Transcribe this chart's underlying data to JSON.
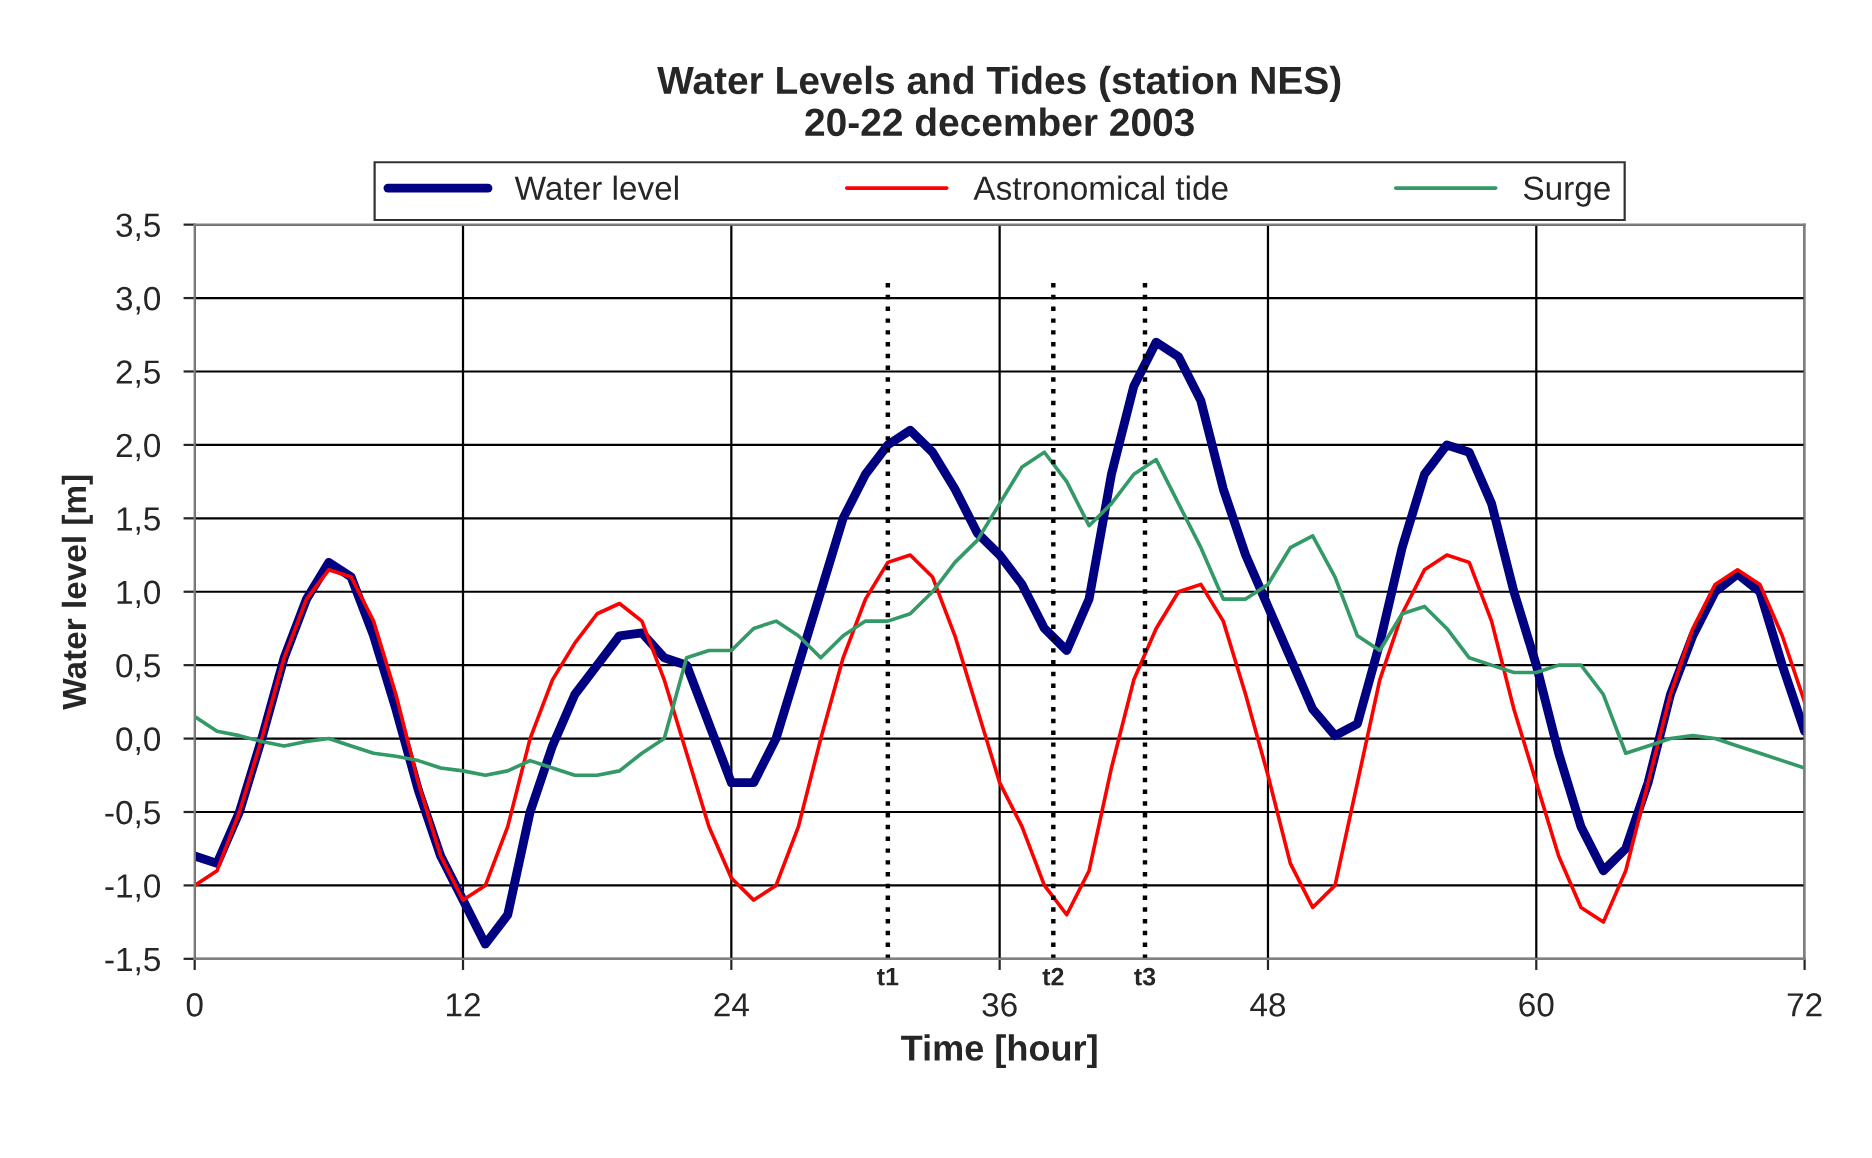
{
  "chart_data": {
    "type": "line",
    "title": "Water Levels and Tides (station NES)\n20-22 december 2003",
    "xlabel": "Time [hour]",
    "ylabel": "Water level [m]",
    "x": [
      0,
      1,
      2,
      3,
      4,
      5,
      6,
      7,
      8,
      9,
      10,
      11,
      12,
      13,
      14,
      15,
      16,
      17,
      18,
      19,
      20,
      21,
      22,
      23,
      24,
      25,
      26,
      27,
      28,
      29,
      30,
      31,
      32,
      33,
      34,
      35,
      36,
      37,
      38,
      39,
      40,
      41,
      42,
      43,
      44,
      45,
      46,
      47,
      48,
      49,
      50,
      51,
      52,
      53,
      54,
      55,
      56,
      57,
      58,
      59,
      60,
      61,
      62,
      63,
      64,
      65,
      66,
      67,
      68,
      69,
      70,
      71,
      72
    ],
    "series": [
      {
        "name": "Water level",
        "color": "#000080",
        "values": [
          -0.8,
          -0.85,
          -0.5,
          0.0,
          0.55,
          0.95,
          1.2,
          1.1,
          0.7,
          0.2,
          -0.35,
          -0.8,
          -1.1,
          -1.4,
          -1.2,
          -0.5,
          -0.05,
          0.3,
          0.5,
          0.7,
          0.72,
          0.55,
          0.5,
          0.1,
          -0.3,
          -0.3,
          0.0,
          0.5,
          1.0,
          1.5,
          1.8,
          2.0,
          2.1,
          1.95,
          1.7,
          1.4,
          1.25,
          1.05,
          0.75,
          0.6,
          0.95,
          1.8,
          2.4,
          2.7,
          2.6,
          2.3,
          1.7,
          1.25,
          0.9,
          0.55,
          0.2,
          0.02,
          0.1,
          0.65,
          1.3,
          1.8,
          2.0,
          1.95,
          1.6,
          1.0,
          0.5,
          -0.1,
          -0.6,
          -0.9,
          -0.75,
          -0.3,
          0.3,
          0.7,
          1.0,
          1.12,
          1.0,
          0.5,
          0.05
        ]
      },
      {
        "name": "Astronomical tide",
        "color": "#ff0000",
        "values": [
          -1.0,
          -0.9,
          -0.5,
          0.0,
          0.55,
          0.95,
          1.15,
          1.1,
          0.8,
          0.3,
          -0.3,
          -0.8,
          -1.1,
          -1.0,
          -0.6,
          0.0,
          0.4,
          0.65,
          0.85,
          0.92,
          0.8,
          0.4,
          -0.1,
          -0.6,
          -0.95,
          -1.1,
          -1.0,
          -0.6,
          0.0,
          0.55,
          0.95,
          1.2,
          1.25,
          1.1,
          0.7,
          0.2,
          -0.3,
          -0.6,
          -1.0,
          -1.2,
          -0.9,
          -0.2,
          0.4,
          0.75,
          1.0,
          1.05,
          0.8,
          0.3,
          -0.25,
          -0.85,
          -1.15,
          -1.0,
          -0.3,
          0.4,
          0.85,
          1.15,
          1.25,
          1.2,
          0.8,
          0.2,
          -0.3,
          -0.8,
          -1.15,
          -1.25,
          -0.9,
          -0.3,
          0.3,
          0.75,
          1.05,
          1.15,
          1.05,
          0.7,
          0.25
        ]
      },
      {
        "name": "Surge",
        "color": "#339966",
        "values": [
          0.15,
          0.05,
          0.02,
          -0.02,
          -0.05,
          -0.02,
          0.0,
          -0.05,
          -0.1,
          -0.12,
          -0.15,
          -0.2,
          -0.22,
          -0.25,
          -0.22,
          -0.15,
          -0.2,
          -0.25,
          -0.25,
          -0.22,
          -0.1,
          0.0,
          0.55,
          0.6,
          0.6,
          0.75,
          0.8,
          0.7,
          0.55,
          0.7,
          0.8,
          0.8,
          0.85,
          1.0,
          1.2,
          1.35,
          1.6,
          1.85,
          1.95,
          1.75,
          1.45,
          1.6,
          1.8,
          1.9,
          1.6,
          1.3,
          0.95,
          0.95,
          1.05,
          1.3,
          1.38,
          1.1,
          0.7,
          0.6,
          0.85,
          0.9,
          0.75,
          0.55,
          0.5,
          0.45,
          0.45,
          0.5,
          0.5,
          0.3,
          -0.1,
          -0.05,
          0.0,
          0.02,
          0.0,
          -0.05,
          -0.1,
          -0.15,
          -0.2
        ]
      }
    ],
    "xlim": [
      0,
      72
    ],
    "xticks": [
      0,
      12,
      24,
      36,
      48,
      60,
      72
    ],
    "ylim": [
      -1.5,
      3.5
    ],
    "yticks": [
      {
        "value": -1.5,
        "label": "-1,5"
      },
      {
        "value": -1.0,
        "label": "-1,0"
      },
      {
        "value": -0.5,
        "label": "-0,5"
      },
      {
        "value": 0.0,
        "label": "0,0"
      },
      {
        "value": 0.5,
        "label": "0,5"
      },
      {
        "value": 1.0,
        "label": "1,0"
      },
      {
        "value": 1.5,
        "label": "1,5"
      },
      {
        "value": 2.0,
        "label": "2,0"
      },
      {
        "value": 2.5,
        "label": "2,5"
      },
      {
        "value": 3.0,
        "label": "3,0"
      },
      {
        "value": 3.5,
        "label": "3,5"
      }
    ],
    "ref_lines": [
      {
        "axis": "x",
        "value": 31,
        "label": "t1",
        "line_style": "dotted",
        "color": "#000000"
      },
      {
        "axis": "x",
        "value": 38.4,
        "label": "t2",
        "line_style": "dotted",
        "color": "#000000"
      },
      {
        "axis": "x",
        "value": 42.5,
        "label": "t3",
        "line_style": "dotted",
        "color": "#000000"
      }
    ],
    "grid": true,
    "legend": "top",
    "line_style": "solid",
    "marker": "none"
  }
}
